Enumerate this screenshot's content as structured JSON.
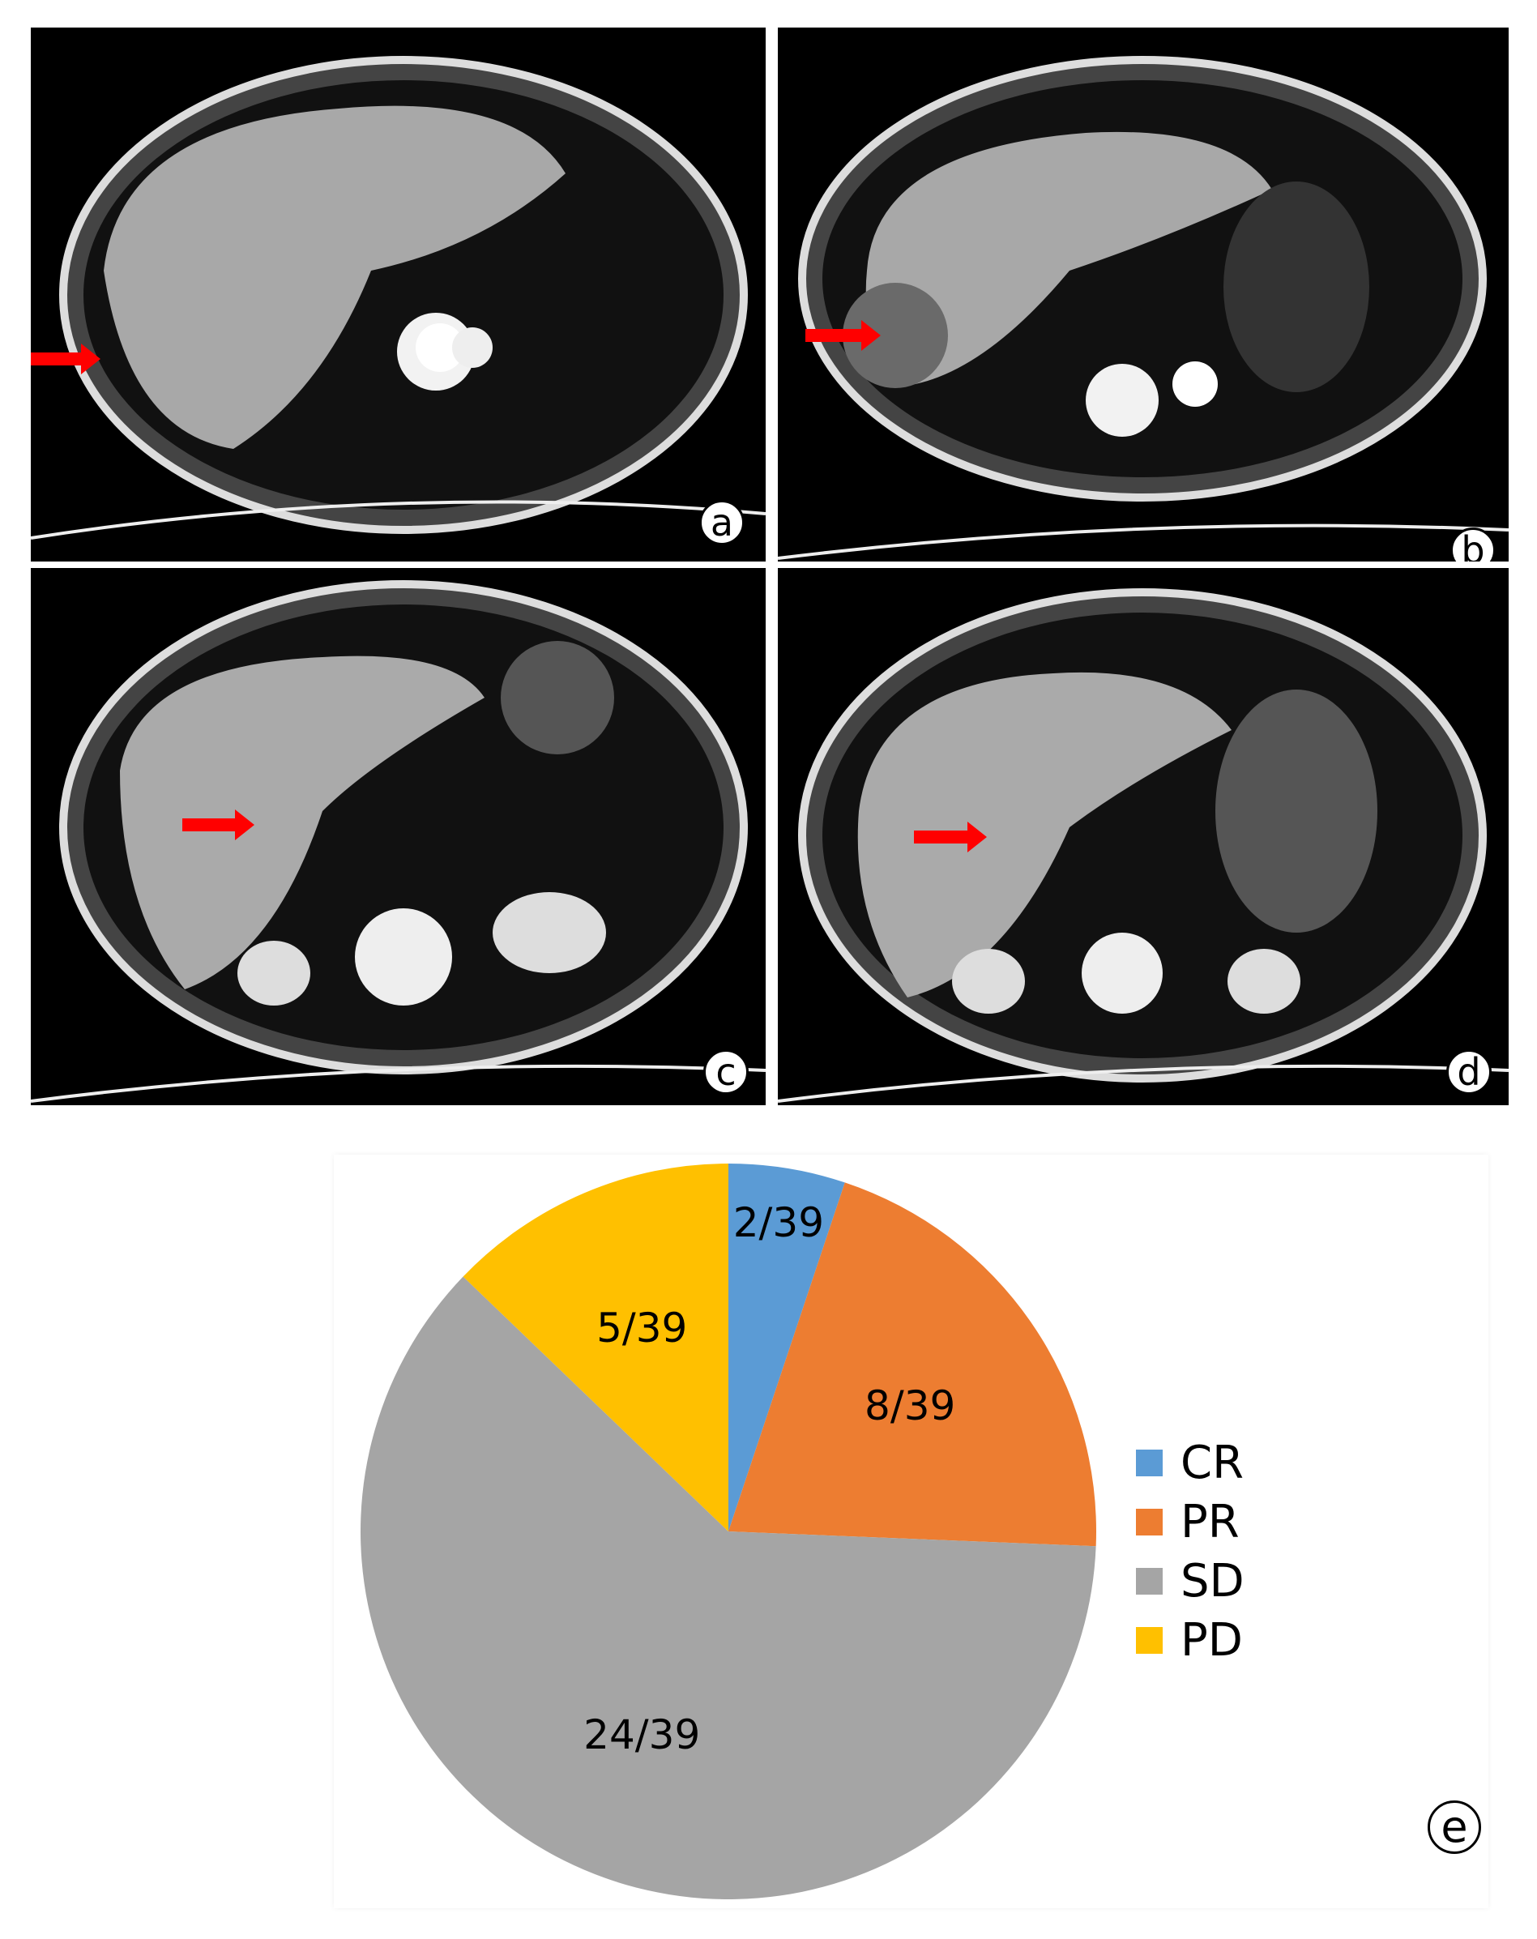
{
  "panels": [
    {
      "label": "a"
    },
    {
      "label": "b"
    },
    {
      "label": "c"
    },
    {
      "label": "d"
    }
  ],
  "chart_data": {
    "type": "pie",
    "panel_label": "e",
    "start_angle": "12 o'clock, clockwise",
    "categories": [
      "CR",
      "PR",
      "SD",
      "PD"
    ],
    "values": [
      2,
      8,
      24,
      5
    ],
    "total": 39,
    "data_labels": [
      "2/39",
      "8/39",
      "24/39",
      "5/39"
    ],
    "colors": [
      "#5B9BD5",
      "#ED7D31",
      "#A5A5A5",
      "#FFC000"
    ],
    "legend": {
      "placement": "right",
      "entries": [
        "CR",
        "PR",
        "SD",
        "PD"
      ]
    }
  },
  "colors": {
    "arrow": "#FF0000",
    "scan_background": "#000000"
  }
}
